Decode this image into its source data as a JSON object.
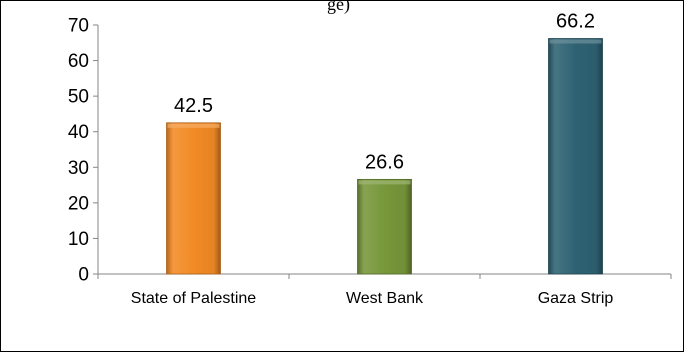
{
  "chart_data": {
    "type": "bar",
    "title": "",
    "title_fragment": "ge)",
    "xlabel": "",
    "ylabel": "",
    "categories": [
      "State of Palestine",
      "West Bank",
      "Gaza Strip"
    ],
    "values": [
      42.5,
      26.6,
      66.2
    ],
    "value_labels": [
      "42.5",
      "26.6",
      "66.2"
    ],
    "ylim": [
      0,
      70
    ],
    "yticks": [
      0,
      10,
      20,
      30,
      40,
      50,
      60,
      70
    ],
    "grid": false,
    "legend": "none",
    "bar_colors": [
      "#f28a25",
      "#77973a",
      "#2e6273"
    ]
  }
}
